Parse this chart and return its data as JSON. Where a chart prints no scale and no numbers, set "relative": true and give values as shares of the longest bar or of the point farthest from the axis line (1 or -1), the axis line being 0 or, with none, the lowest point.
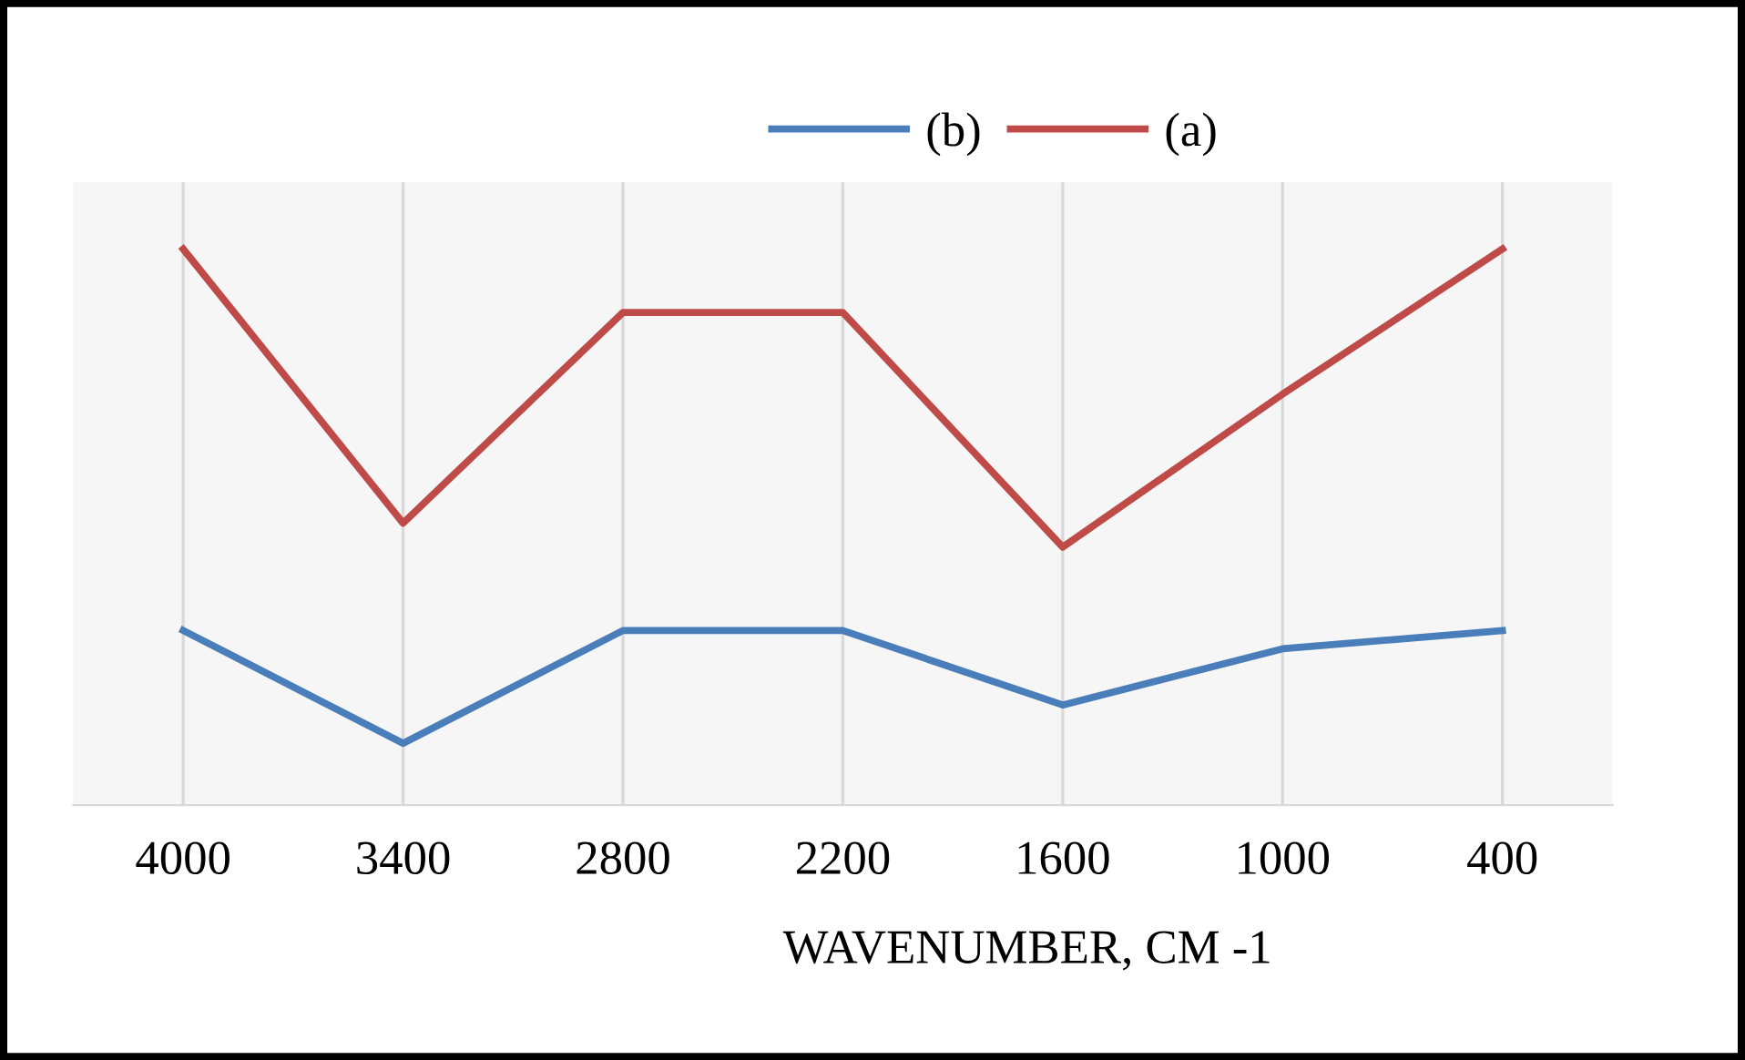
{
  "chart_data": {
    "type": "line",
    "xlabel": "WAVENUMBER, CM -1",
    "categories": [
      "4000",
      "3400",
      "2800",
      "2200",
      "1600",
      "1000",
      "400"
    ],
    "series": [
      {
        "name": "(b)",
        "color": "#4a7ebb",
        "values": [
          0.314,
          0.111,
          0.314,
          0.314,
          0.18,
          0.281,
          0.314
        ]
      },
      {
        "name": "(a)",
        "color": "#be4b48",
        "values": [
          1,
          0.507,
          0.886,
          0.886,
          0.464,
          0.739,
          1
        ]
      }
    ],
    "relative": true,
    "grid": "x",
    "legend": "top",
    "marker": "none",
    "line_style": "solid"
  }
}
